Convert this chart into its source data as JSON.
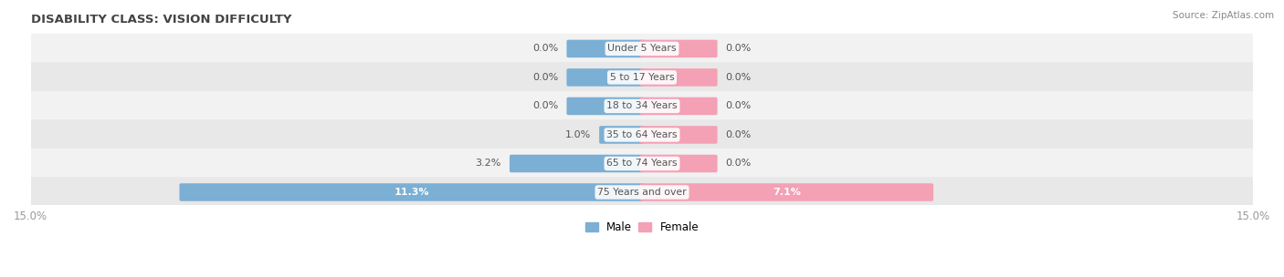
{
  "title": "DISABILITY CLASS: VISION DIFFICULTY",
  "source": "Source: ZipAtlas.com",
  "categories": [
    "Under 5 Years",
    "5 to 17 Years",
    "18 to 34 Years",
    "35 to 64 Years",
    "65 to 74 Years",
    "75 Years and over"
  ],
  "male_values": [
    0.0,
    0.0,
    0.0,
    1.0,
    3.2,
    11.3
  ],
  "female_values": [
    0.0,
    0.0,
    0.0,
    0.0,
    0.0,
    7.1
  ],
  "xlim": 15.0,
  "male_color": "#7bafd4",
  "female_color": "#f4a0b5",
  "row_bg_even": "#f2f2f2",
  "row_bg_odd": "#e8e8e8",
  "label_color": "#555555",
  "title_color": "#444444",
  "source_color": "#888888",
  "axis_label_color": "#999999",
  "min_bar_display": 0.8,
  "bar_height": 0.52,
  "figsize": [
    14.06,
    3.04
  ],
  "dpi": 100,
  "legend_male": "Male",
  "legend_female": "Female"
}
